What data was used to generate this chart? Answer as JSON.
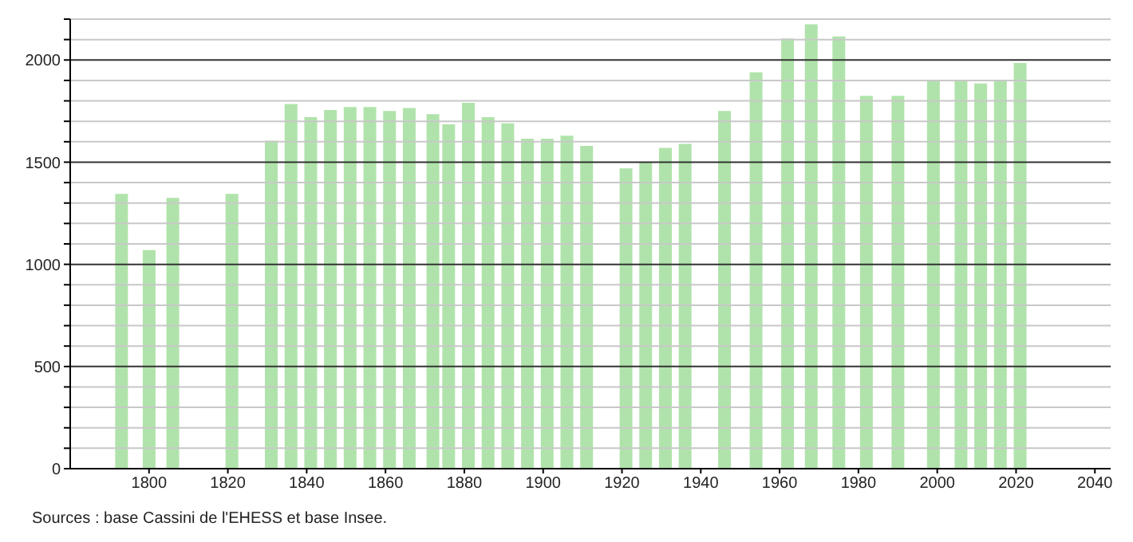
{
  "chart_data": {
    "type": "bar",
    "x": [
      1793,
      1800,
      1806,
      1821,
      1831,
      1836,
      1841,
      1846,
      1851,
      1856,
      1861,
      1866,
      1872,
      1876,
      1881,
      1886,
      1891,
      1896,
      1901,
      1906,
      1911,
      1921,
      1926,
      1931,
      1936,
      1946,
      1954,
      1962,
      1968,
      1975,
      1982,
      1990,
      1999,
      2006,
      2011,
      2016,
      2021
    ],
    "values": [
      1345,
      1070,
      1325,
      1345,
      1605,
      1785,
      1720,
      1755,
      1770,
      1770,
      1750,
      1765,
      1735,
      1685,
      1790,
      1720,
      1690,
      1615,
      1615,
      1630,
      1580,
      1470,
      1500,
      1570,
      1590,
      1750,
      1940,
      2105,
      2175,
      2115,
      1825,
      1825,
      1900,
      1900,
      1885,
      1900,
      1985
    ],
    "color": "#b0e3ab",
    "xlim": [
      1780,
      2044
    ],
    "xticks": [
      1800,
      1820,
      1840,
      1860,
      1880,
      1900,
      1920,
      1940,
      1960,
      1980,
      2000,
      2020,
      2040
    ],
    "ylim": [
      0,
      2200
    ],
    "yticks": [
      0,
      {
        "value": 100,
        "label": null
      },
      {
        "value": 200,
        "label": null
      },
      {
        "value": 300,
        "label": null
      },
      {
        "value": 400,
        "label": null
      },
      500,
      {
        "value": 600,
        "label": null
      },
      {
        "value": 700,
        "label": null
      },
      {
        "value": 800,
        "label": null
      },
      {
        "value": 900,
        "label": null
      },
      1000,
      {
        "value": 1100,
        "label": null
      },
      {
        "value": 1200,
        "label": null
      },
      {
        "value": 1300,
        "label": null
      },
      {
        "value": 1400,
        "label": null
      },
      1500,
      {
        "value": 1600,
        "label": null
      },
      {
        "value": 1700,
        "label": null
      },
      {
        "value": 1800,
        "label": null
      },
      {
        "value": 1900,
        "label": null
      },
      2000,
      {
        "value": 2100,
        "label": null
      },
      {
        "value": 2200,
        "label": null
      }
    ],
    "grid": "y",
    "annotations": [
      "Sources : base Cassini de l'EHESS et base Insee."
    ]
  }
}
